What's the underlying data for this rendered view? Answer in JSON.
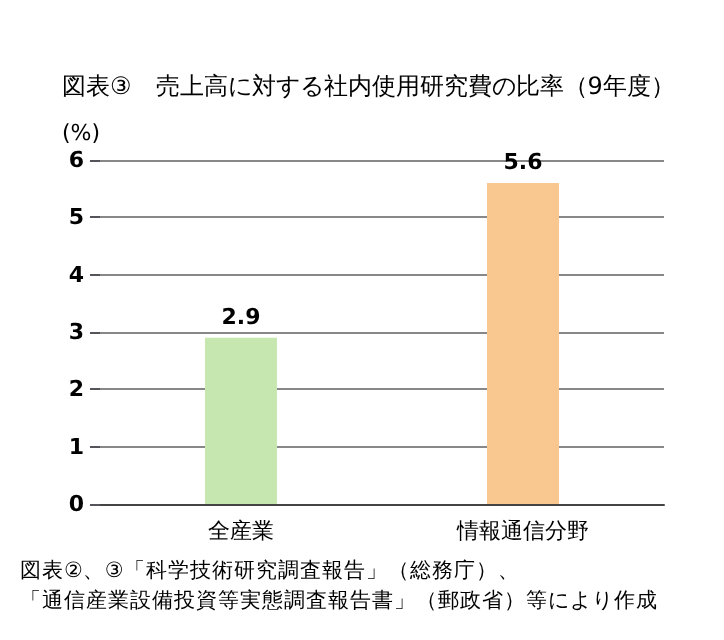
{
  "chart_data": {
    "type": "bar",
    "title": "図表③　売上高に対する社内使用研究費の比率（9年度）",
    "ylabel": "(%)",
    "categories": [
      "全産業",
      "情報通信分野"
    ],
    "values": [
      2.9,
      5.6
    ],
    "colors": [
      "#c6e8b0",
      "#f8c890"
    ],
    "ylim": [
      0,
      6
    ],
    "yticks": [
      0,
      1,
      2,
      3,
      4,
      5,
      6
    ],
    "grid": "y",
    "data_labels": true,
    "annotations": [
      "図表②、③「科学技術研究調査報告」（総務庁）、",
      "「通信産業設備投資等実態調査報告書」（郵政省）等により作成"
    ]
  }
}
